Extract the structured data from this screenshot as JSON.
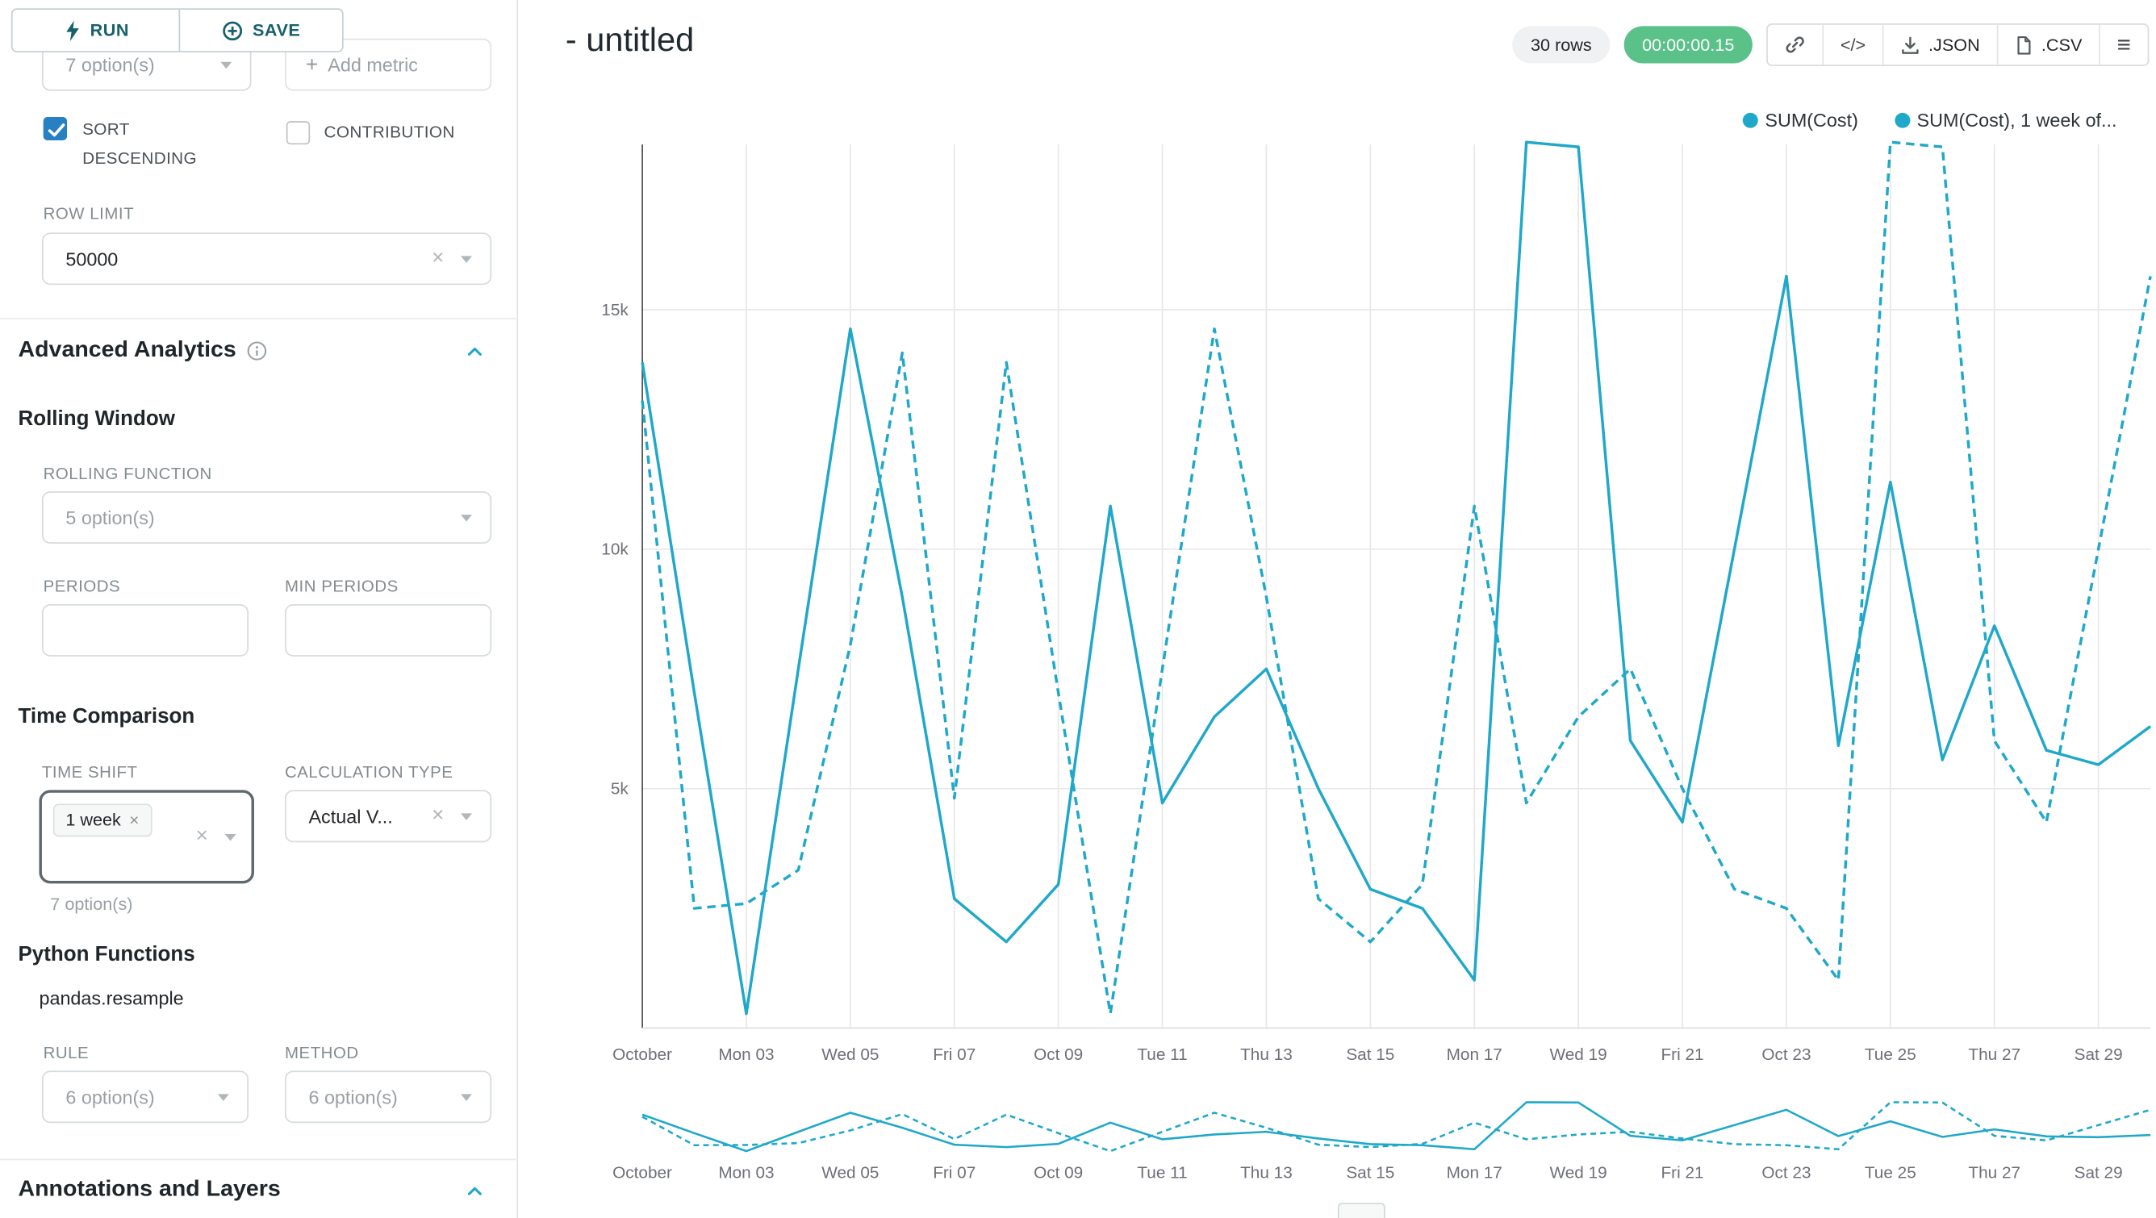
{
  "sidebar": {
    "run_label": "RUN",
    "save_label": "SAVE",
    "metrics_value": "7 option(s)",
    "add_metric_label": "Add metric",
    "sort_descending_label": "SORT DESCENDING",
    "contribution_label": "CONTRIBUTION",
    "row_limit_label": "ROW LIMIT",
    "row_limit_value": "50000",
    "advanced_analytics": {
      "title": "Advanced Analytics",
      "rolling_window_title": "Rolling Window",
      "rolling_function_label": "ROLLING FUNCTION",
      "rolling_function_value": "5 option(s)",
      "periods_label": "PERIODS",
      "min_periods_label": "MIN PERIODS",
      "time_comparison_title": "Time Comparison",
      "time_shift_label": "TIME SHIFT",
      "time_shift_tag": "1 week",
      "time_shift_hint": "7 option(s)",
      "calculation_type_label": "CALCULATION TYPE",
      "calculation_type_value": "Actual V...",
      "python_functions_title": "Python Functions",
      "resample_label": "pandas.resample",
      "rule_label": "RULE",
      "rule_value": "6 option(s)",
      "method_label": "METHOD",
      "method_value": "6 option(s)"
    },
    "annotations_title": "Annotations and Layers"
  },
  "header": {
    "title": "- untitled",
    "rows_badge": "30 rows",
    "timer": "00:00:00.15",
    "code_button": "</>",
    "json_button": ".JSON",
    "csv_button": ".CSV"
  },
  "legend": [
    "SUM(Cost)",
    "SUM(Cost), 1 week of..."
  ],
  "glyphs": {
    "plus": "+",
    "clear": "×",
    "menu": "≡"
  },
  "icons": {
    "run": "bolt-icon",
    "save": "plus-circle-icon",
    "sort_checked": "check-icon",
    "info": "info-icon",
    "collapse": "chevron-up-icon",
    "select_caret": "caret-down-icon",
    "select_clear": "x-icon",
    "permalink": "link-icon",
    "view_query": "code-icon",
    "json_export": "download-icon",
    "csv_export": "file-icon",
    "more": "menu-icon"
  },
  "colors": {
    "series": "#1fa8c9",
    "accent": "#20a7c9",
    "timer_bg": "#5ac189",
    "checkbox": "#2680c2"
  },
  "chart_data": {
    "type": "line",
    "title": "",
    "x_tick_labels": [
      "October",
      "Mon 03",
      "Wed 05",
      "Fri 07",
      "Oct 09",
      "Tue 11",
      "Thu 13",
      "Sat 15",
      "Mon 17",
      "Wed 19",
      "Fri 21",
      "Oct 23",
      "Tue 25",
      "Thu 27",
      "Sat 29"
    ],
    "y_ticks": [
      5000,
      10000,
      15000
    ],
    "y_tick_labels": [
      "5k",
      "10k",
      "15k"
    ],
    "ylim": [
      0,
      18450
    ],
    "grid": true,
    "legend_position": "top-right",
    "has_mini_preview": true,
    "series": [
      {
        "name": "SUM(Cost)",
        "style": "solid",
        "values": [
          13900,
          7000,
          300,
          7500,
          14600,
          9000,
          2700,
          1800,
          3000,
          10900,
          4700,
          6500,
          7500,
          5000,
          2900,
          2500,
          1000,
          18500,
          18400,
          6000,
          4300,
          10000,
          15700,
          5900,
          11400,
          5600,
          8400,
          5800,
          5500,
          6300
        ]
      },
      {
        "name": "SUM(Cost), 1 week of...",
        "style": "dashed",
        "values": [
          13100,
          2500,
          2600,
          3300,
          8000,
          14100,
          4800,
          13900,
          7000,
          300,
          7500,
          14600,
          9000,
          2700,
          1800,
          3000,
          10900,
          4700,
          6500,
          7500,
          5000,
          2900,
          2500,
          1000,
          18500,
          18400,
          6000,
          4300,
          10000,
          15700
        ]
      }
    ]
  }
}
